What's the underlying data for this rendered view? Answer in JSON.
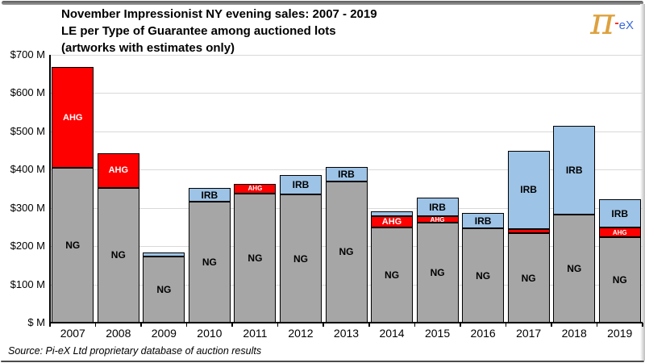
{
  "title": {
    "line1": "November Impressionist NY evening sales: 2007 - 2019",
    "line2": "LE per Type of Guarantee among auctioned lots",
    "line3": "(artworks with estimates only)"
  },
  "logo": {
    "pi_symbol": "π",
    "dash": "-",
    "suffix": "eX",
    "pi_color": "#DEA13F",
    "dash_color": "#FF2616",
    "suffix_color": "#3A6AD9"
  },
  "source_note": "Source:  Pi-eX Ltd proprietary database of auction results",
  "chart_data": {
    "type": "bar",
    "stacked": true,
    "title": "November Impressionist NY evening sales: 2007 - 2019 — LE per Type of Guarantee among auctioned lots (artworks with estimates only)",
    "xlabel": "",
    "ylabel": "$ M",
    "ylim": [
      0,
      700
    ],
    "grid": true,
    "gridline_color": "#D9D9D9",
    "axis_color": "#000000",
    "bar_border_color": "#000000",
    "legend_position": "labels inside segments",
    "categories": [
      "2007",
      "2008",
      "2009",
      "2010",
      "2011",
      "2012",
      "2013",
      "2014",
      "2015",
      "2016",
      "2017",
      "2018",
      "2019"
    ],
    "series": [
      {
        "name": "NG",
        "color": "#A6A6A6",
        "label_color": "#000000",
        "values": [
          404,
          353,
          172,
          316,
          337,
          335,
          369,
          249,
          261,
          246,
          234,
          283,
          223
        ],
        "label_styles": [
          "normal",
          "normal",
          "normal",
          "normal",
          "normal",
          "normal",
          "normal",
          "normal",
          "normal",
          "normal",
          "normal",
          "normal",
          "normal"
        ]
      },
      {
        "name": "AHG",
        "color": "#FF0000",
        "label_color": "#FFFFFF",
        "values": [
          264,
          89,
          0,
          0,
          26,
          0,
          0,
          30,
          17,
          0,
          10,
          0,
          25
        ],
        "label_styles": [
          "normal",
          "normal",
          "none",
          "none",
          "small",
          "none",
          "none",
          "normal",
          "small",
          "none",
          "none",
          "none",
          "small"
        ]
      },
      {
        "name": "IRB",
        "color": "#9DC3E6",
        "label_color": "#000000",
        "values": [
          0,
          0,
          11,
          36,
          0,
          50,
          38,
          12,
          48,
          40,
          206,
          231,
          75
        ],
        "label_styles": [
          "none",
          "none",
          "none",
          "normal",
          "none",
          "normal",
          "normal",
          "none",
          "normal",
          "normal",
          "normal",
          "normal",
          "normal"
        ]
      }
    ],
    "yticks": [
      {
        "value": 0,
        "label": "$ M"
      },
      {
        "value": 100,
        "label": "$100 M"
      },
      {
        "value": 200,
        "label": "$200 M"
      },
      {
        "value": 300,
        "label": "$300 M"
      },
      {
        "value": 400,
        "label": "$400 M"
      },
      {
        "value": 500,
        "label": "$500 M"
      },
      {
        "value": 600,
        "label": "$600 M"
      },
      {
        "value": 700,
        "label": "$700 M"
      }
    ]
  }
}
